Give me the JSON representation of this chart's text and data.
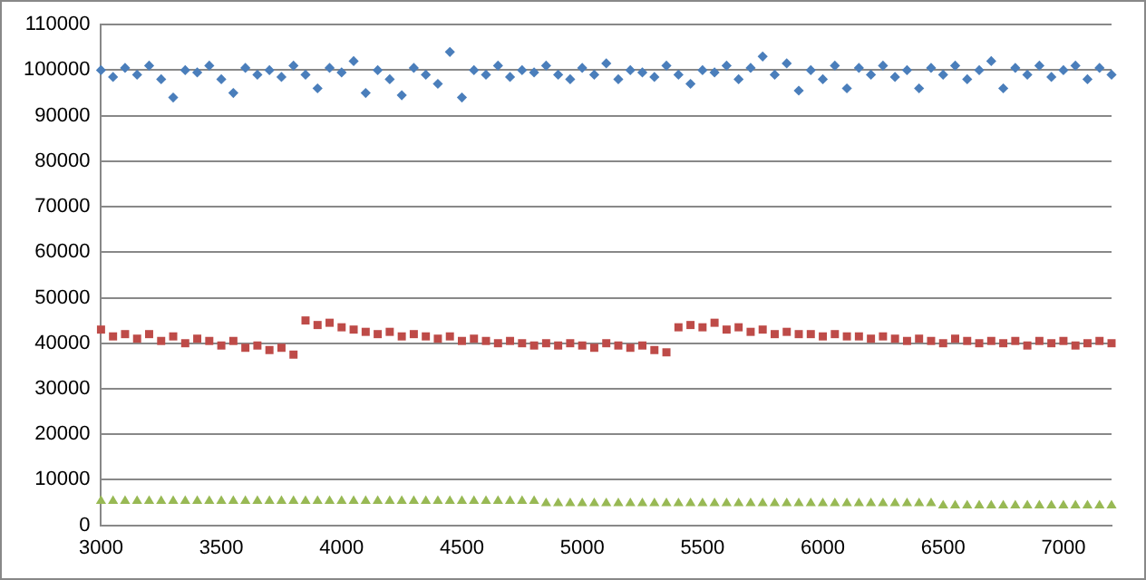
{
  "chart_data": {
    "type": "scatter",
    "x": [
      3000,
      3050,
      3100,
      3150,
      3200,
      3250,
      3300,
      3350,
      3400,
      3450,
      3500,
      3550,
      3600,
      3650,
      3700,
      3750,
      3800,
      3850,
      3900,
      3950,
      4000,
      4050,
      4100,
      4150,
      4200,
      4250,
      4300,
      4350,
      4400,
      4450,
      4500,
      4550,
      4600,
      4650,
      4700,
      4750,
      4800,
      4850,
      4900,
      4950,
      5000,
      5050,
      5100,
      5150,
      5200,
      5250,
      5300,
      5350,
      5400,
      5450,
      5500,
      5550,
      5600,
      5650,
      5700,
      5750,
      5800,
      5850,
      5900,
      5950,
      6000,
      6050,
      6100,
      6150,
      6200,
      6250,
      6300,
      6350,
      6400,
      6450,
      6500,
      6550,
      6600,
      6650,
      6700,
      6750,
      6800,
      6850,
      6900,
      6950,
      7000,
      7050,
      7100,
      7150,
      7200
    ],
    "series": [
      {
        "color": "#4a7ebb",
        "marker": "diamond",
        "values": [
          100000,
          98500,
          100500,
          99000,
          101000,
          98000,
          94000,
          100000,
          99500,
          101000,
          98000,
          95000,
          100500,
          99000,
          100000,
          98500,
          101000,
          99000,
          96000,
          100500,
          99500,
          102000,
          95000,
          100000,
          98000,
          94500,
          100500,
          99000,
          97000,
          104000,
          94000,
          100000,
          99000,
          101000,
          98500,
          100000,
          99500,
          101000,
          99000,
          98000,
          100500,
          99000,
          101500,
          98000,
          100000,
          99500,
          98500,
          101000,
          99000,
          97000,
          100000,
          99500,
          101000,
          98000,
          100500,
          103000,
          99000,
          101500,
          95500,
          100000,
          98000,
          101000,
          96000,
          100500,
          99000,
          101000,
          98500,
          100000,
          96000,
          100500,
          99000,
          101000,
          98000,
          100000,
          102000,
          96000,
          100500,
          99000,
          101000,
          98500,
          100000,
          101000,
          98000,
          100500,
          99000
        ]
      },
      {
        "color": "#be4b48",
        "marker": "square",
        "values": [
          43000,
          41500,
          42000,
          41000,
          42000,
          40500,
          41500,
          40000,
          41000,
          40500,
          39500,
          40500,
          39000,
          39500,
          38500,
          39000,
          37500,
          45000,
          44000,
          44500,
          43500,
          43000,
          42500,
          42000,
          42500,
          41500,
          42000,
          41500,
          41000,
          41500,
          40500,
          41000,
          40500,
          40000,
          40500,
          40000,
          39500,
          40000,
          39500,
          40000,
          39500,
          39000,
          40000,
          39500,
          39000,
          39500,
          38500,
          38000,
          43500,
          44000,
          43500,
          44500,
          43000,
          43500,
          42500,
          43000,
          42000,
          42500,
          42000,
          42000,
          41500,
          42000,
          41500,
          41500,
          41000,
          41500,
          41000,
          40500,
          41000,
          40500,
          40000,
          41000,
          40500,
          40000,
          40500,
          40000,
          40500,
          39500,
          40500,
          40000,
          40500,
          39500,
          40000,
          40500,
          40000
        ]
      },
      {
        "color": "#98b954",
        "marker": "triangle",
        "values": [
          5500,
          5500,
          5500,
          5500,
          5500,
          5500,
          5500,
          5500,
          5500,
          5500,
          5500,
          5500,
          5500,
          5500,
          5500,
          5500,
          5500,
          5500,
          5500,
          5500,
          5500,
          5500,
          5500,
          5500,
          5500,
          5500,
          5500,
          5500,
          5500,
          5500,
          5500,
          5500,
          5500,
          5500,
          5500,
          5500,
          5500,
          5000,
          5000,
          5000,
          5000,
          5000,
          5000,
          5000,
          5000,
          5000,
          5000,
          5000,
          5000,
          5000,
          5000,
          5000,
          5000,
          5000,
          5000,
          5000,
          5000,
          5000,
          5000,
          5000,
          5000,
          5000,
          5000,
          5000,
          5000,
          5000,
          5000,
          5000,
          5000,
          5000,
          4500,
          4500,
          4500,
          4500,
          4500,
          4500,
          4500,
          4500,
          4500,
          4500,
          4500,
          4500,
          4500,
          4500,
          4500
        ]
      }
    ],
    "xlim": [
      3000,
      7200
    ],
    "xticks": [
      3000,
      3500,
      4000,
      4500,
      5000,
      5500,
      6000,
      6500,
      7000
    ],
    "ylim": [
      0,
      110000
    ],
    "yticks": [
      0,
      10000,
      20000,
      30000,
      40000,
      50000,
      60000,
      70000,
      80000,
      90000,
      100000,
      110000
    ],
    "grid": "y",
    "legend": false
  }
}
